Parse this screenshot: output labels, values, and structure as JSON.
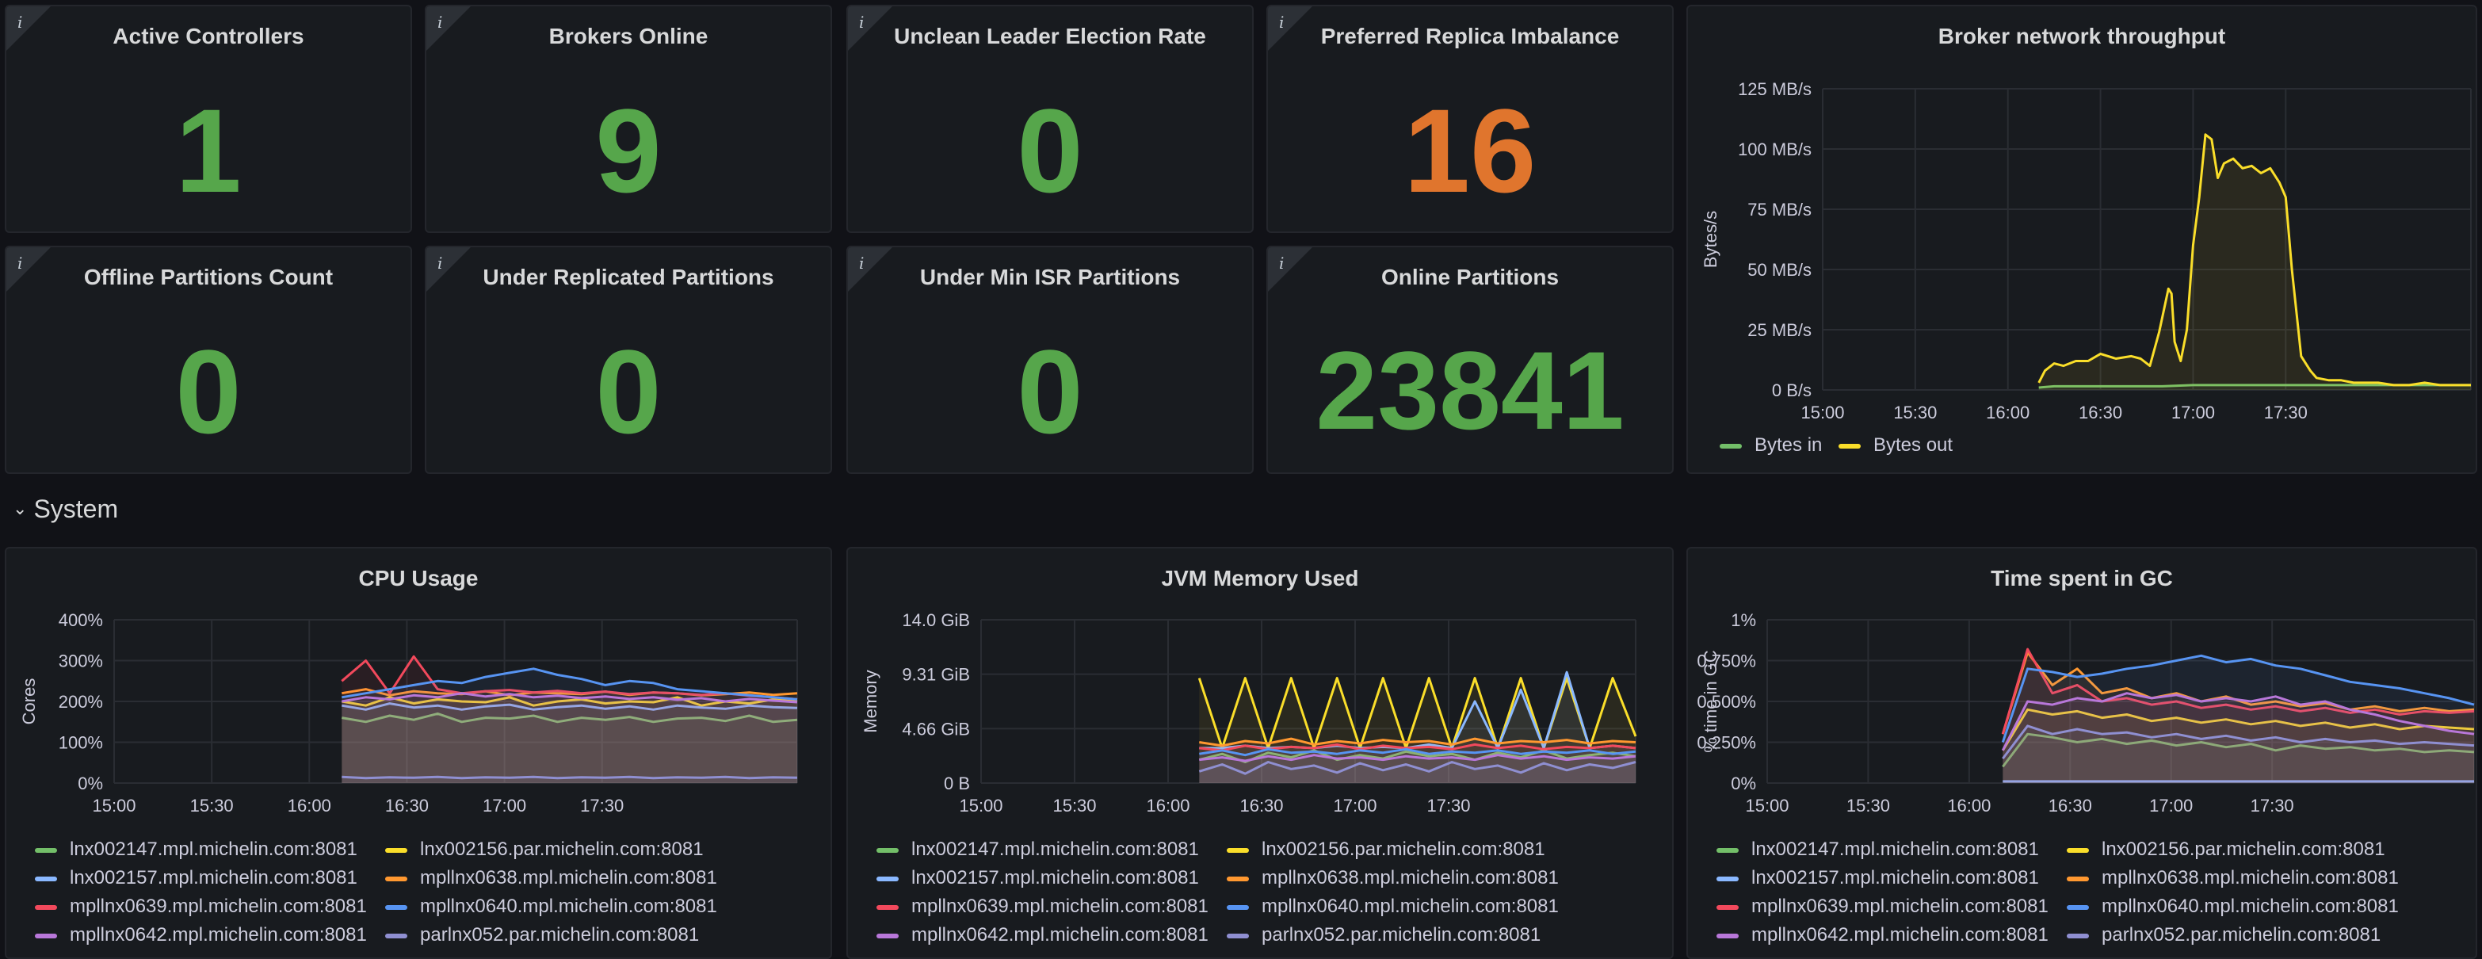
{
  "stats": [
    {
      "title": "Active Controllers",
      "value": "1",
      "color": "#56a64b"
    },
    {
      "title": "Brokers Online",
      "value": "9",
      "color": "#56a64b"
    },
    {
      "title": "Unclean Leader Election Rate",
      "value": "0",
      "color": "#56a64b"
    },
    {
      "title": "Preferred Replica Imbalance",
      "value": "16",
      "color": "#e0752d"
    },
    {
      "title": "Offline Partitions Count",
      "value": "0",
      "color": "#56a64b"
    },
    {
      "title": "Under Replicated Partitions",
      "value": "0",
      "color": "#56a64b"
    },
    {
      "title": "Under Min ISR Partitions",
      "value": "0",
      "color": "#56a64b"
    },
    {
      "title": "Online Partitions",
      "value": "23841",
      "color": "#56a64b"
    }
  ],
  "info_icon": "i",
  "row": {
    "title": "System",
    "icon": "chevron-down-icon"
  },
  "colors": {
    "green": "#73bf69",
    "yellow": "#fade2a",
    "cyan": "#8ab8ff",
    "orange": "#ff9830",
    "red": "#f2495c",
    "blue": "#5794f2",
    "purple": "#b877d9",
    "lavender": "#8f8fd1"
  },
  "chart_data": [
    {
      "id": "network",
      "type": "line",
      "title": "Broker network throughput",
      "ylabel": "Bytes/s",
      "ylim": [
        0,
        125
      ],
      "y_ticks": [
        "0 B/s",
        "25 MB/s",
        "50 MB/s",
        "75 MB/s",
        "100 MB/s",
        "125 MB/s"
      ],
      "x_ticks": [
        "15:00",
        "15:30",
        "16:00",
        "16:30",
        "17:00",
        "17:30"
      ],
      "xlim_minutes": [
        900,
        1110
      ],
      "series": [
        {
          "name": "Bytes in",
          "color": "#73bf69",
          "x": [
            970,
            975,
            990,
            1000,
            1010,
            1020,
            1030,
            1040,
            1050,
            1060,
            1070,
            1080,
            1090,
            1100,
            1110
          ],
          "values": [
            1,
            1.5,
            1.5,
            1.5,
            1.5,
            2,
            2,
            2,
            2,
            2,
            2,
            2,
            2,
            2,
            2
          ]
        },
        {
          "name": "Bytes out",
          "color": "#fade2a",
          "x": [
            970,
            972,
            975,
            978,
            982,
            986,
            990,
            995,
            1000,
            1003,
            1006,
            1009,
            1012,
            1013,
            1014,
            1016,
            1018,
            1020,
            1022,
            1024,
            1026,
            1028,
            1030,
            1033,
            1036,
            1039,
            1042,
            1045,
            1048,
            1050,
            1052,
            1055,
            1058,
            1060,
            1064,
            1068,
            1072,
            1076,
            1080,
            1085,
            1090,
            1095,
            1100,
            1105,
            1110
          ],
          "values": [
            3,
            8,
            11,
            10,
            12,
            12,
            15,
            13,
            14,
            13,
            10,
            24,
            42,
            40,
            20,
            12,
            25,
            60,
            80,
            106,
            104,
            88,
            94,
            96,
            92,
            93,
            90,
            92,
            86,
            80,
            50,
            14,
            8,
            5,
            4,
            4,
            3,
            3,
            3,
            2,
            2,
            3,
            2,
            2,
            2
          ]
        }
      ]
    },
    {
      "id": "cpu",
      "type": "line",
      "title": "CPU Usage",
      "ylabel": "Cores",
      "ylim": [
        0,
        400
      ],
      "y_ticks": [
        "0%",
        "100%",
        "200%",
        "300%",
        "400%"
      ],
      "x_ticks": [
        "15:00",
        "15:30",
        "16:00",
        "16:30",
        "17:00",
        "17:30"
      ],
      "xlim_minutes": [
        900,
        1110
      ],
      "series": [
        {
          "name": "lnx002147.mpl.michelin.com:8081",
          "color": "#73bf69",
          "values": [
            160,
            150,
            165,
            155,
            170,
            150,
            160,
            158,
            165,
            150,
            160,
            155,
            162,
            150,
            158,
            160,
            152,
            165,
            150,
            155
          ]
        },
        {
          "name": "lnx002156.par.michelin.com:8081",
          "color": "#fade2a",
          "values": [
            200,
            190,
            210,
            195,
            205,
            200,
            198,
            210,
            190,
            200,
            205,
            195,
            200,
            198,
            210,
            190,
            200,
            195,
            205,
            200
          ]
        },
        {
          "name": "lnx002157.mpl.michelin.com:8081",
          "color": "#8ab8ff",
          "values": [
            190,
            180,
            195,
            185,
            190,
            180,
            188,
            192,
            180,
            186,
            190,
            182,
            188,
            180,
            190,
            185,
            182,
            190,
            186,
            184
          ]
        },
        {
          "name": "mpllnx0638.mpl.michelin.com:8081",
          "color": "#ff9830",
          "values": [
            220,
            230,
            215,
            225,
            220,
            218,
            225,
            215,
            222,
            220,
            218,
            224,
            216,
            222,
            220,
            215,
            218,
            222,
            216,
            220
          ]
        },
        {
          "name": "mpllnx0639.mpl.michelin.com:8081",
          "color": "#f2495c",
          "values": [
            250,
            300,
            220,
            310,
            230,
            220,
            225,
            228,
            222,
            226,
            220,
            224,
            218,
            222,
            220,
            216,
            220,
            214,
            210,
            205
          ]
        },
        {
          "name": "mpllnx0640.mpl.michelin.com:8081",
          "color": "#5794f2",
          "values": [
            210,
            220,
            230,
            240,
            250,
            245,
            260,
            270,
            280,
            265,
            255,
            240,
            250,
            245,
            230,
            225,
            220,
            215,
            210,
            205
          ]
        },
        {
          "name": "mpllnx0642.mpl.michelin.com:8081",
          "color": "#b877d9",
          "values": [
            200,
            210,
            205,
            215,
            210,
            220,
            212,
            218,
            210,
            214,
            208,
            212,
            206,
            210,
            204,
            208,
            200,
            206,
            202,
            198
          ]
        },
        {
          "name": "parlnx052.par.michelin.com:8081",
          "color": "#8f8fd1",
          "values": [
            15,
            12,
            14,
            13,
            15,
            12,
            14,
            13,
            15,
            12,
            14,
            13,
            15,
            12,
            14,
            13,
            15,
            12,
            14,
            13
          ]
        }
      ]
    },
    {
      "id": "jvm",
      "type": "line",
      "title": "JVM Memory Used",
      "ylabel": "Memory",
      "ylim": [
        0,
        14
      ],
      "y_ticks": [
        "0 B",
        "4.66 GiB",
        "9.31 GiB",
        "14.0 GiB"
      ],
      "x_ticks": [
        "15:00",
        "15:30",
        "16:00",
        "16:30",
        "17:00",
        "17:30"
      ],
      "xlim_minutes": [
        900,
        1110
      ],
      "series": [
        {
          "name": "lnx002147.mpl.michelin.com:8081",
          "color": "#73bf69",
          "values": [
            2,
            2.5,
            1.8,
            2.6,
            2.2,
            2.8,
            2,
            2.4,
            2.1,
            2.7,
            2.3,
            2.5,
            2,
            2.6,
            2.2,
            2.8,
            2.1,
            2.4,
            2.6,
            2.3
          ]
        },
        {
          "name": "lnx002156.par.michelin.com:8081",
          "color": "#fade2a",
          "values": [
            9,
            3,
            9,
            3,
            9,
            3,
            9,
            3,
            9,
            3,
            9,
            3,
            9,
            3,
            9,
            3,
            9,
            3,
            9,
            4
          ]
        },
        {
          "name": "lnx002157.mpl.michelin.com:8081",
          "color": "#8ab8ff",
          "values": [
            3,
            3,
            3.2,
            3,
            3.1,
            3,
            3.2,
            3,
            3.1,
            3,
            3.3,
            3,
            7,
            3,
            8,
            3,
            9.5,
            3,
            3.2,
            3
          ]
        },
        {
          "name": "mpllnx0638.mpl.michelin.com:8081",
          "color": "#ff9830",
          "values": [
            3.5,
            3.2,
            3.6,
            3.4,
            3.8,
            3.3,
            3.6,
            3.4,
            3.7,
            3.5,
            3.6,
            3.3,
            3.8,
            3.4,
            3.6,
            3.5,
            3.7,
            3.4,
            3.6,
            3.5
          ]
        },
        {
          "name": "mpllnx0639.mpl.michelin.com:8081",
          "color": "#f2495c",
          "values": [
            3,
            2.8,
            3.2,
            2.9,
            3.1,
            3,
            3.3,
            2.9,
            3.2,
            3,
            3.1,
            2.9,
            3.3,
            3,
            3.2,
            2.9,
            3.1,
            3,
            3.2,
            3
          ]
        },
        {
          "name": "mpllnx0640.mpl.michelin.com:8081",
          "color": "#5794f2",
          "values": [
            2.5,
            2.8,
            2.4,
            2.9,
            2.6,
            2.7,
            2.5,
            2.8,
            2.6,
            2.9,
            2.5,
            2.7,
            2.6,
            2.8,
            2.5,
            2.7,
            2.6,
            2.8,
            2.5,
            2.7
          ]
        },
        {
          "name": "mpllnx0642.mpl.michelin.com:8081",
          "color": "#b877d9",
          "values": [
            2,
            2.2,
            1.9,
            2.3,
            2,
            2.4,
            2.1,
            2.2,
            2,
            2.3,
            2.1,
            2.2,
            2,
            2.4,
            2.1,
            2.3,
            2,
            2.2,
            2.1,
            2.3
          ]
        },
        {
          "name": "parlnx052.par.michelin.com:8081",
          "color": "#8f8fd1",
          "values": [
            1,
            1.6,
            0.8,
            1.8,
            1.2,
            1.5,
            0.9,
            1.7,
            1.1,
            1.6,
            1,
            1.8,
            1.2,
            1.5,
            0.9,
            1.7,
            1.1,
            1.6,
            1.3,
            1.8
          ]
        }
      ]
    },
    {
      "id": "gc",
      "type": "line",
      "title": "Time spent in GC",
      "ylabel": "% time in GC",
      "ylim": [
        0,
        1
      ],
      "y_ticks": [
        "0%",
        "0.250%",
        "0.500%",
        "0.750%",
        "1%"
      ],
      "x_ticks": [
        "15:00",
        "15:30",
        "16:00",
        "16:30",
        "17:00",
        "17:30"
      ],
      "xlim_minutes": [
        900,
        1110
      ],
      "series": [
        {
          "name": "lnx002147.mpl.michelin.com:8081",
          "color": "#73bf69",
          "values": [
            0.1,
            0.3,
            0.28,
            0.25,
            0.27,
            0.24,
            0.26,
            0.23,
            0.25,
            0.22,
            0.24,
            0.2,
            0.23,
            0.21,
            0.22,
            0.2,
            0.21,
            0.19,
            0.2,
            0.19
          ]
        },
        {
          "name": "lnx002156.par.michelin.com:8081",
          "color": "#fade2a",
          "values": [
            0.2,
            0.45,
            0.42,
            0.44,
            0.4,
            0.42,
            0.38,
            0.4,
            0.37,
            0.39,
            0.36,
            0.38,
            0.35,
            0.37,
            0.34,
            0.36,
            0.33,
            0.35,
            0.34,
            0.33
          ]
        },
        {
          "name": "lnx002157.mpl.michelin.com:8081",
          "color": "#8ab8ff",
          "values": [
            0.01,
            0.01,
            0.01,
            0.01,
            0.01,
            0.01,
            0.01,
            0.01,
            0.01,
            0.01,
            0.01,
            0.01,
            0.01,
            0.01,
            0.01,
            0.01,
            0.01,
            0.01,
            0.01,
            0.01
          ]
        },
        {
          "name": "mpllnx0638.mpl.michelin.com:8081",
          "color": "#ff9830",
          "values": [
            0.3,
            0.8,
            0.6,
            0.7,
            0.55,
            0.58,
            0.52,
            0.55,
            0.5,
            0.53,
            0.48,
            0.5,
            0.47,
            0.49,
            0.45,
            0.47,
            0.44,
            0.46,
            0.44,
            0.45
          ]
        },
        {
          "name": "mpllnx0639.mpl.michelin.com:8081",
          "color": "#f2495c",
          "values": [
            0.3,
            0.82,
            0.55,
            0.6,
            0.5,
            0.52,
            0.48,
            0.5,
            0.46,
            0.48,
            0.45,
            0.47,
            0.44,
            0.46,
            0.43,
            0.45,
            0.42,
            0.44,
            0.43,
            0.44
          ]
        },
        {
          "name": "mpllnx0640.mpl.michelin.com:8081",
          "color": "#5794f2",
          "values": [
            0.25,
            0.7,
            0.68,
            0.65,
            0.67,
            0.7,
            0.72,
            0.75,
            0.78,
            0.74,
            0.76,
            0.72,
            0.7,
            0.66,
            0.62,
            0.6,
            0.58,
            0.55,
            0.52,
            0.48
          ]
        },
        {
          "name": "mpllnx0642.mpl.michelin.com:8081",
          "color": "#b877d9",
          "values": [
            0.2,
            0.5,
            0.48,
            0.52,
            0.5,
            0.55,
            0.52,
            0.54,
            0.5,
            0.52,
            0.5,
            0.53,
            0.48,
            0.5,
            0.45,
            0.42,
            0.38,
            0.35,
            0.32,
            0.3
          ]
        },
        {
          "name": "parlnx052.par.michelin.com:8081",
          "color": "#8f8fd1",
          "values": [
            0.15,
            0.35,
            0.3,
            0.33,
            0.3,
            0.31,
            0.28,
            0.3,
            0.27,
            0.29,
            0.26,
            0.28,
            0.25,
            0.27,
            0.25,
            0.26,
            0.24,
            0.25,
            0.24,
            0.23
          ]
        }
      ]
    }
  ]
}
